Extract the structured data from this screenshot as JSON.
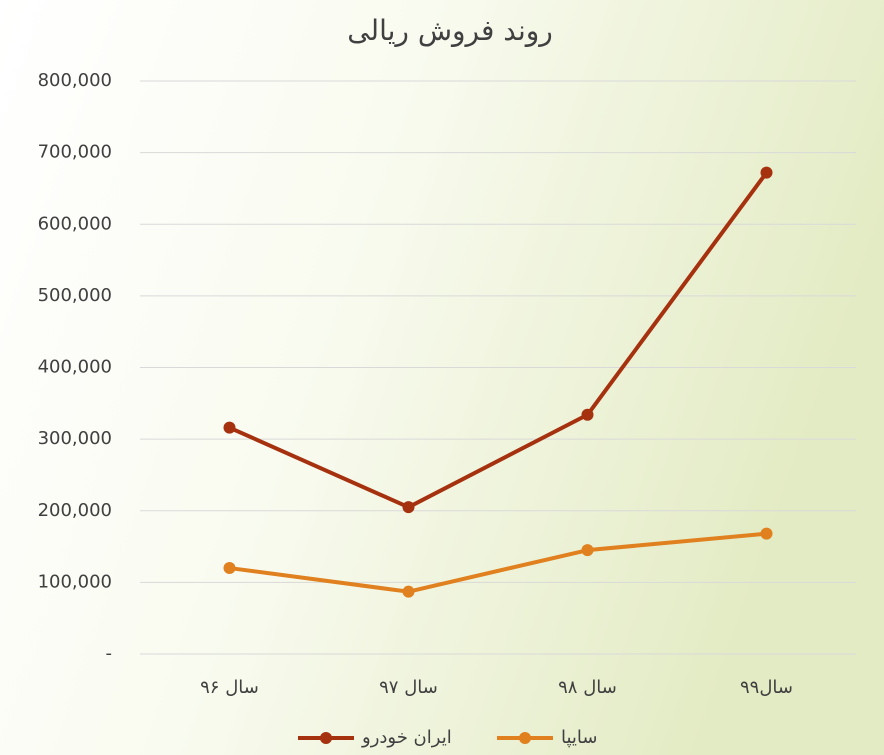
{
  "chart_data": {
    "type": "line",
    "title": "روند فروش ریالی",
    "categories": [
      "سال ۹۶",
      "سال ۹۷",
      "سال ۹۸",
      "سال۹۹"
    ],
    "series": [
      {
        "name": "ایران خودرو",
        "color": "#a5310f",
        "values": [
          316000,
          205000,
          334000,
          672000
        ]
      },
      {
        "name": "سایپا",
        "color": "#e0801f",
        "values": [
          120000,
          87000,
          145000,
          168000
        ]
      }
    ],
    "ylim": [
      0,
      800000
    ],
    "yticks": [
      {
        "value": 0,
        "label": "-"
      },
      {
        "value": 100000,
        "label": "100,000"
      },
      {
        "value": 200000,
        "label": "200,000"
      },
      {
        "value": 300000,
        "label": "300,000"
      },
      {
        "value": 400000,
        "label": "400,000"
      },
      {
        "value": 500000,
        "label": "500,000"
      },
      {
        "value": 600000,
        "label": "600,000"
      },
      {
        "value": 700000,
        "label": "700,000"
      },
      {
        "value": 800000,
        "label": "800,000"
      }
    ],
    "grid": true,
    "legend": "bottom"
  }
}
